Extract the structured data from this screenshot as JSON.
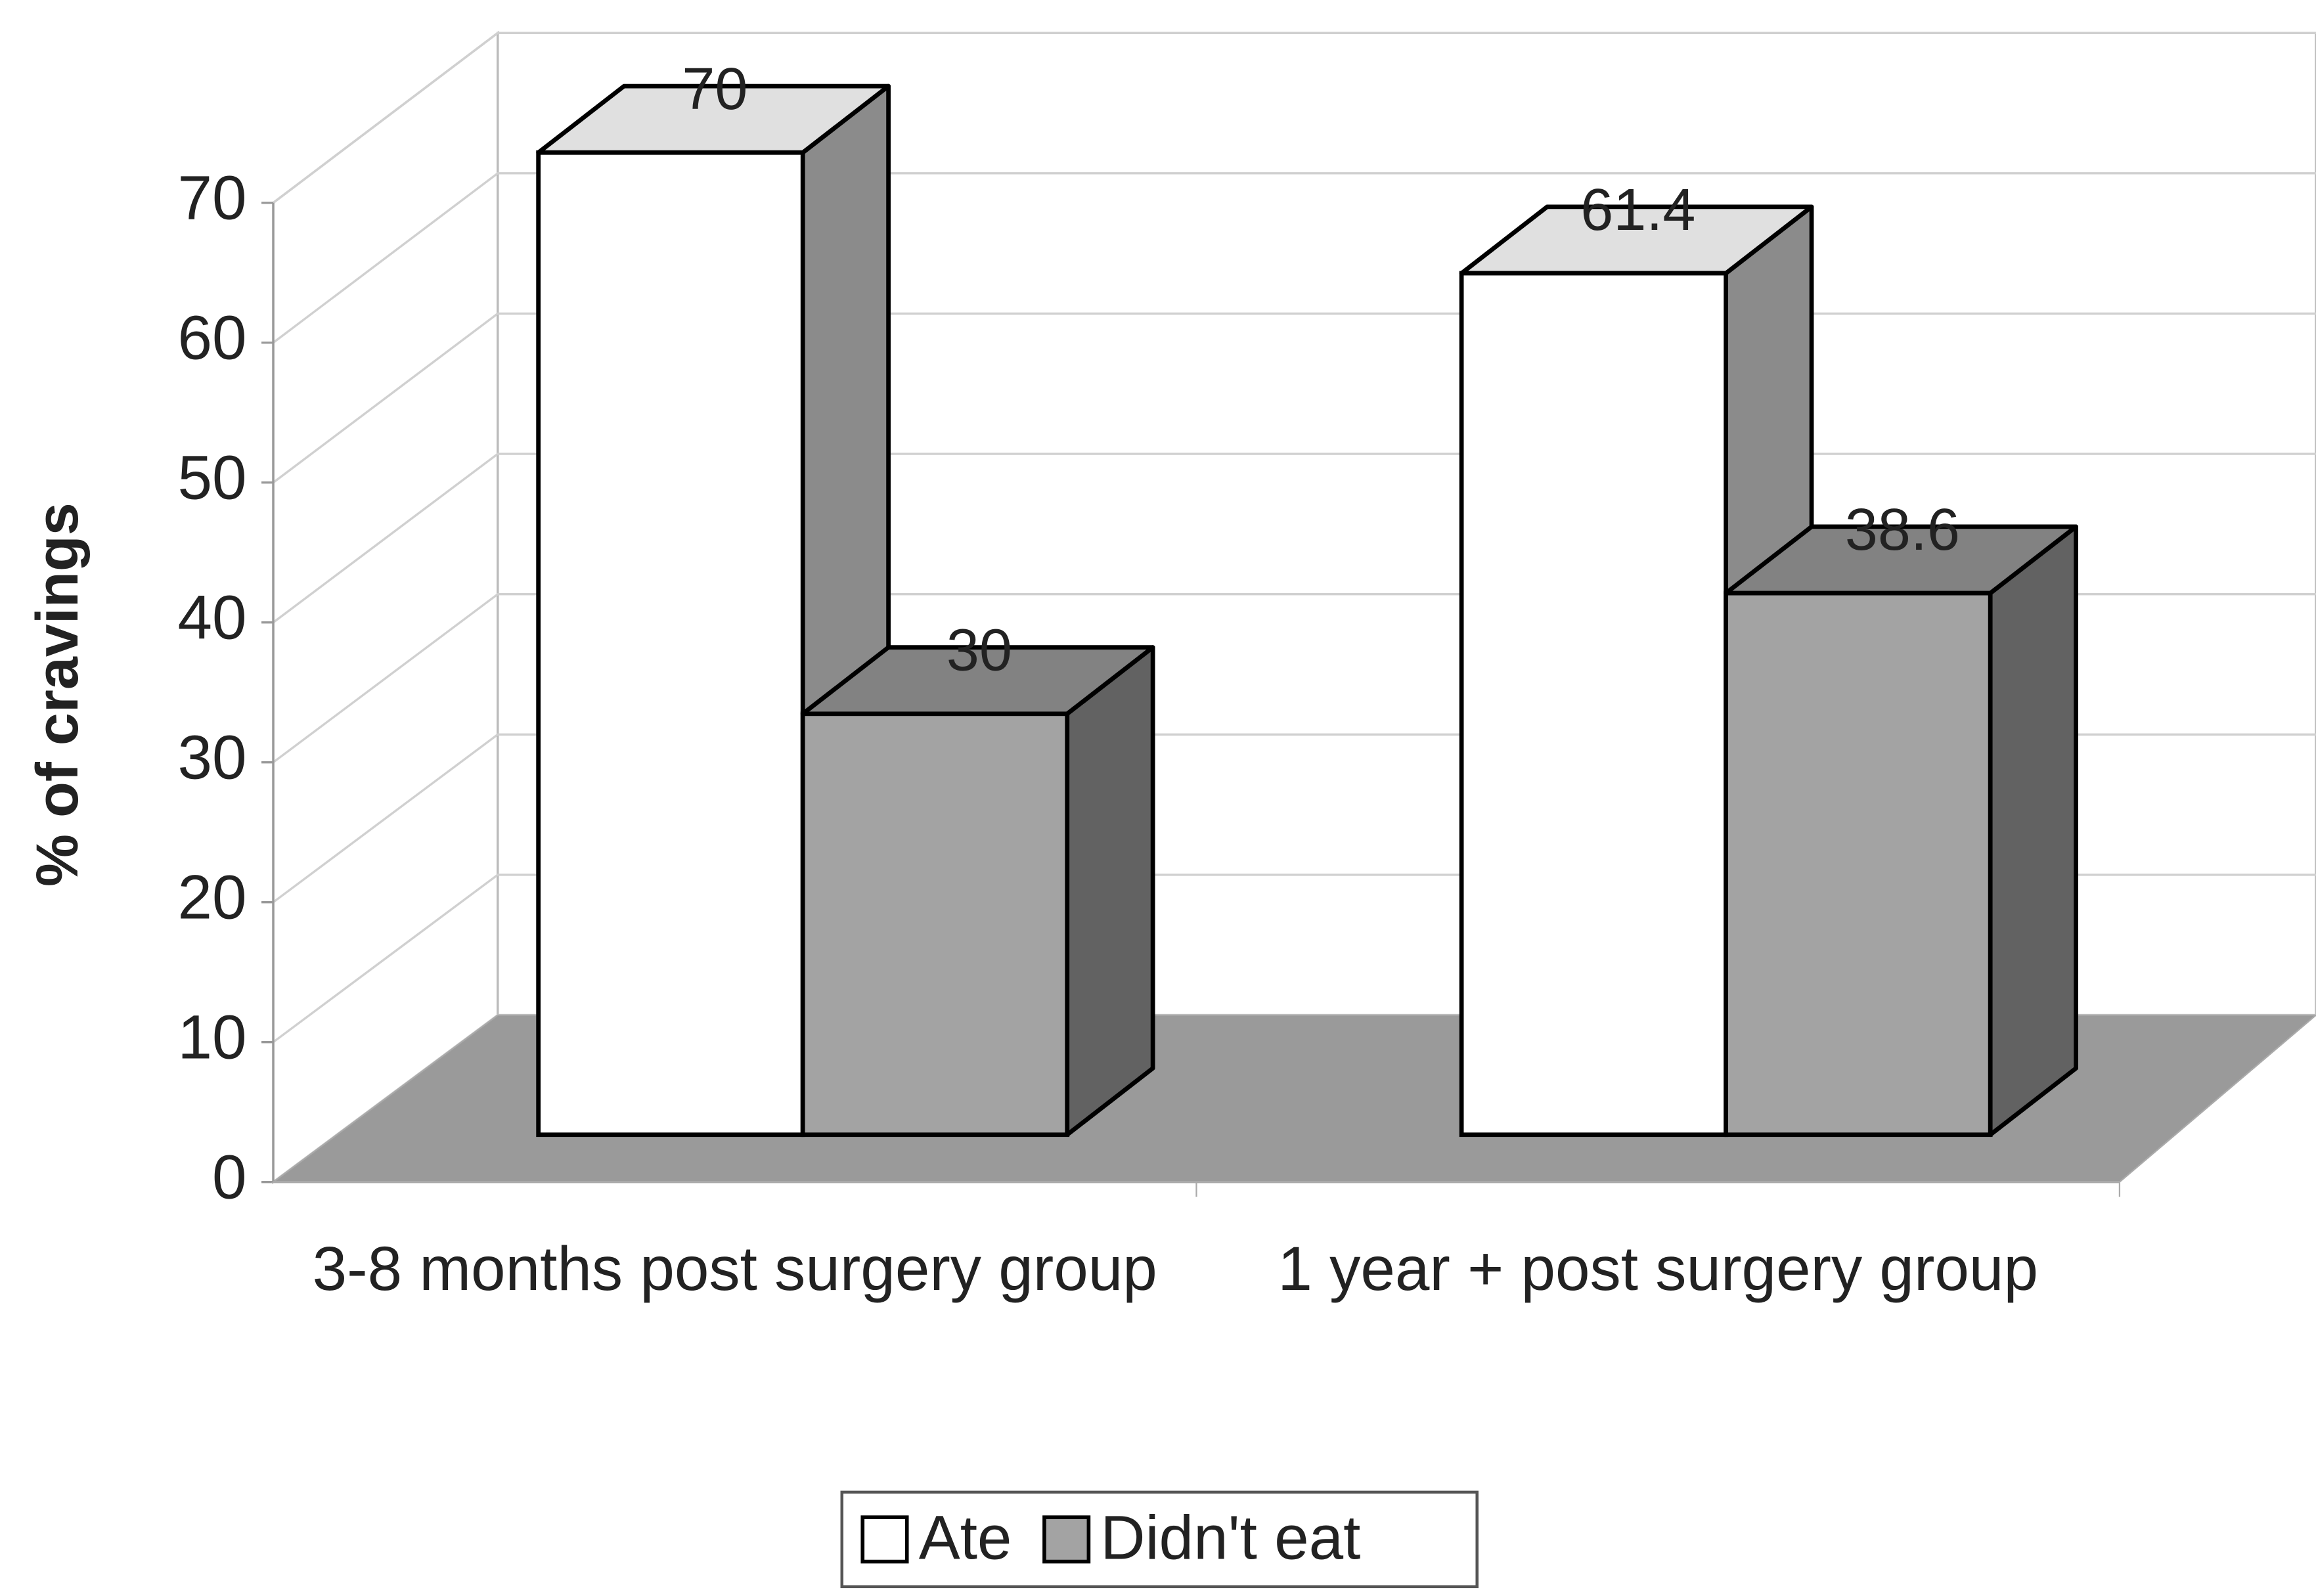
{
  "chart_data": {
    "type": "bar3d",
    "y_label": "% of cravings",
    "categories": [
      "3-8 months post surgery group",
      "1 year + post surgery group"
    ],
    "series": [
      {
        "name": "Ate",
        "color": "#ffffff",
        "values": [
          70,
          61.4
        ]
      },
      {
        "name": "Didn't eat",
        "color": "#a3a3a3",
        "values": [
          30,
          38.6
        ]
      }
    ],
    "ylim": [
      0,
      70
    ],
    "yticks": [
      0,
      10,
      20,
      30,
      40,
      50,
      60,
      70
    ],
    "grid": true,
    "legend": "bottom"
  }
}
